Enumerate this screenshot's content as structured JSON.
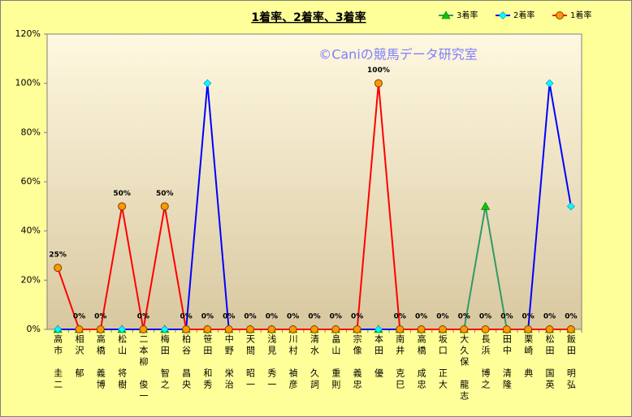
{
  "chart_data": {
    "type": "line",
    "title": "1着率、2着率、3着率",
    "annotation": "©Caniの競馬データ研究室",
    "categories": [
      [
        "高市",
        "圭二"
      ],
      [
        "相沢",
        "郁"
      ],
      [
        "高橋",
        "義博"
      ],
      [
        "松山",
        "将樹"
      ],
      [
        "二本柳",
        "俊一"
      ],
      [
        "梅田",
        "智之"
      ],
      [
        "柏谷",
        "昌央"
      ],
      [
        "笹田",
        "和秀"
      ],
      [
        "中野",
        "栄治"
      ],
      [
        "天間",
        "昭一"
      ],
      [
        "浅見",
        "秀一"
      ],
      [
        "川村",
        "禎彦"
      ],
      [
        "清水",
        "久詞"
      ],
      [
        "畠山",
        "重則"
      ],
      [
        "宗像",
        "義忠"
      ],
      [
        "本田",
        "優"
      ],
      [
        "南井",
        "克巳"
      ],
      [
        "高橋",
        "成忠"
      ],
      [
        "坂口",
        "正大"
      ],
      [
        "大久保",
        "龍志"
      ],
      [
        "長浜",
        "博之"
      ],
      [
        "田中",
        "清隆"
      ],
      [
        "栗崎",
        "典"
      ],
      [
        "松田",
        "国英"
      ],
      [
        "飯田",
        "明弘"
      ]
    ],
    "series": [
      {
        "name": "3着率",
        "color": "#339966",
        "marker": "triangle",
        "marker_color": "#00cc00",
        "values": [
          0,
          0,
          0,
          0,
          0,
          0,
          0,
          0,
          0,
          0,
          0,
          0,
          0,
          0,
          0,
          0,
          0,
          0,
          0,
          0,
          50,
          0,
          0,
          0,
          0
        ]
      },
      {
        "name": "2着率",
        "color": "#0000ff",
        "marker": "diamond",
        "marker_color": "#00ffff",
        "values": [
          0,
          0,
          0,
          0,
          0,
          0,
          0,
          100,
          0,
          0,
          0,
          0,
          0,
          0,
          0,
          0,
          0,
          0,
          0,
          0,
          0,
          0,
          0,
          100,
          50
        ]
      },
      {
        "name": "1着率",
        "color": "#ff0000",
        "marker": "circle",
        "marker_color": "#ff9900",
        "values": [
          25,
          0,
          0,
          50,
          0,
          50,
          0,
          0,
          0,
          0,
          0,
          0,
          0,
          0,
          0,
          100,
          0,
          0,
          0,
          0,
          0,
          0,
          0,
          0,
          0
        ],
        "value_labels": [
          "25%",
          "0%",
          "0%",
          "50%",
          "0%",
          "50%",
          "0%",
          "0%",
          "0%",
          "0%",
          "0%",
          "0%",
          "0%",
          "0%",
          "0%",
          "100%",
          "0%",
          "0%",
          "0%",
          "0%",
          "0%",
          "0%",
          "0%",
          "0%",
          "0%"
        ]
      }
    ],
    "ylim": [
      0,
      120
    ],
    "yticks": [
      {
        "value": 0,
        "label": "0%"
      },
      {
        "value": 20,
        "label": "20%"
      },
      {
        "value": 40,
        "label": "40%"
      },
      {
        "value": 60,
        "label": "60%"
      },
      {
        "value": 80,
        "label": "80%"
      },
      {
        "value": 100,
        "label": "100%"
      },
      {
        "value": 120,
        "label": "120%"
      }
    ],
    "grid": false,
    "legend": "top-right"
  }
}
